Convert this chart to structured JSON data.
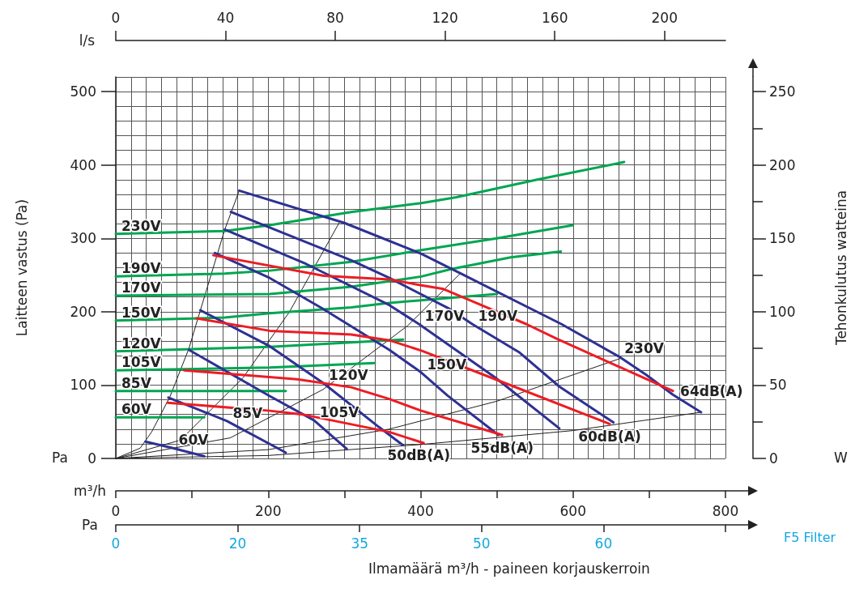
{
  "chart_data": {
    "type": "line",
    "xlabel": "m³/h",
    "x2label": "l/s",
    "ylabel": "Laitteen vastus (Pa)",
    "y2label": "Tehonkulutus watteina",
    "xlim": [
      0,
      800
    ],
    "xticks": [
      0,
      {
        "value": 100,
        "label": null
      },
      200,
      {
        "value": 300,
        "label": null
      },
      400,
      {
        "value": 500,
        "label": null
      },
      600,
      {
        "value": 700,
        "label": null
      },
      800
    ],
    "x2lim": [
      0,
      222.2
    ],
    "x2ticks": [
      0,
      40,
      80,
      120,
      160,
      200
    ],
    "ylim": [
      0,
      520
    ],
    "yticks": [
      0,
      100,
      200,
      300,
      400,
      500
    ],
    "y2lim": [
      0,
      260
    ],
    "y2ticks": [
      0,
      50,
      100,
      150,
      200,
      250
    ],
    "grid": true,
    "legend": false,
    "marker": "none",
    "line_style": "solid",
    "annotations": [
      "Pa",
      "W",
      "Pa",
      "0",
      "20",
      "35",
      "50",
      "60",
      "F5 Filter",
      "Ilmamäärä m³/h - paineen korjauskerroin"
    ],
    "series": [
      {
        "name": "230V",
        "color": "#00a651",
        "axis": "y2",
        "x": [
          0,
          143,
          202,
          309,
          401,
          447,
          553,
          667
        ],
        "values": [
          153,
          155,
          159,
          168,
          174,
          178,
          190,
          202
        ]
      },
      {
        "name": "190V",
        "color": "#00a651",
        "axis": "y2",
        "x": [
          0,
          143,
          202,
          309,
          401,
          500,
          600
        ],
        "values": [
          124,
          126,
          128,
          134,
          142,
          150,
          159
        ]
      },
      {
        "name": "170V",
        "color": "#00a651",
        "axis": "y2",
        "x": [
          0,
          202,
          309,
          401,
          440,
          518,
          584
        ],
        "values": [
          111,
          112,
          117,
          124,
          129,
          137,
          141
        ]
      },
      {
        "name": "150V",
        "color": "#00a651",
        "axis": "y2",
        "x": [
          0,
          143,
          202,
          309,
          359,
          500
        ],
        "values": [
          94,
          96,
          99,
          103,
          106,
          112
        ]
      },
      {
        "name": "120V",
        "color": "#00a651",
        "axis": "y2",
        "x": [
          0,
          202,
          377
        ],
        "values": [
          73,
          76,
          81
        ]
      },
      {
        "name": "105V",
        "color": "#00a651",
        "axis": "y2",
        "x": [
          0,
          202,
          339
        ],
        "values": [
          60,
          62,
          65
        ]
      },
      {
        "name": "85V",
        "color": "#00a651",
        "axis": "y2",
        "x": [
          0,
          223
        ],
        "values": [
          46,
          46
        ]
      },
      {
        "name": "60V",
        "color": "#00a651",
        "axis": "y2",
        "x": [
          0,
          116
        ],
        "values": [
          28,
          28
        ]
      },
      {
        "name": "60V",
        "color": "#2e3192",
        "x": [
          39,
          75,
          116
        ],
        "values": [
          23,
          14,
          3
        ]
      },
      {
        "name": "85V",
        "color": "#2e3192",
        "x": [
          69,
          146,
          223
        ],
        "values": [
          83,
          51,
          8
        ]
      },
      {
        "name": "105V",
        "color": "#2e3192",
        "x": [
          96,
          202,
          260,
          303
        ],
        "values": [
          148,
          85,
          52,
          13
        ]
      },
      {
        "name": "120V",
        "color": "#2e3192",
        "x": [
          111,
          202,
          272,
          345,
          377
        ],
        "values": [
          202,
          153,
          103,
          43,
          18
        ]
      },
      {
        "name": "150V",
        "color": "#2e3192",
        "x": [
          130,
          202,
          270,
          359,
          401,
          435,
          502
        ],
        "values": [
          280,
          246,
          205,
          148,
          117,
          86,
          32
        ]
      },
      {
        "name": "170V",
        "color": "#2e3192",
        "x": [
          143,
          250,
          359,
          398,
          497,
          582
        ],
        "values": [
          312,
          265,
          209,
          183,
          111,
          41
        ]
      },
      {
        "name": "190V",
        "color": "#2e3192",
        "x": [
          151,
          309,
          359,
          436,
          468,
          529,
          582,
          653
        ],
        "values": [
          336,
          270,
          246,
          205,
          183,
          145,
          98,
          49
        ]
      },
      {
        "name": "230V",
        "color": "#2e3192",
        "x": [
          162,
          300,
          401,
          451,
          585,
          660,
          696,
          731,
          768
        ],
        "values": [
          365,
          321,
          279,
          253,
          183,
          139,
          114,
          87,
          63
        ]
      },
      {
        "name": "50dB(A)",
        "color": "#ed1c24",
        "x": [
          68,
          202,
          245,
          359,
          404
        ],
        "values": [
          76,
          65,
          60,
          36,
          21
        ]
      },
      {
        "name": "55dB(A)",
        "color": "#ed1c24",
        "x": [
          90,
          238,
          309,
          359,
          401,
          507
        ],
        "values": [
          120,
          108,
          97,
          81,
          65,
          32
        ]
      },
      {
        "name": "60dB(A)",
        "color": "#ed1c24",
        "x": [
          106,
          202,
          309,
          359,
          401,
          483,
          648
        ],
        "values": [
          191,
          174,
          169,
          161,
          147,
          114,
          47
        ]
      },
      {
        "name": "64dB(A)",
        "color": "#ed1c24",
        "x": [
          128,
          273,
          359,
          401,
          430,
          489,
          539,
          579,
          731
        ],
        "values": [
          277,
          249,
          244,
          236,
          231,
          205,
          183,
          163,
          92
        ]
      },
      {
        "color": "#231f20",
        "x": [
          0,
          32,
          47,
          71,
          96,
          111,
          143,
          162
        ],
        "values": [
          0,
          14,
          36,
          84,
          150,
          202,
          312,
          365
        ]
      },
      {
        "color": "#231f20",
        "x": [
          0,
          85,
          167,
          228,
          293
        ],
        "values": [
          0,
          25,
          110,
          200,
          321
        ]
      },
      {
        "color": "#231f20",
        "x": [
          0,
          150,
          272,
          383,
          452
        ],
        "values": [
          0,
          28,
          94,
          181,
          252
        ]
      },
      {
        "color": "#231f20",
        "x": [
          0,
          200,
          359,
          500,
          664
        ],
        "values": [
          0,
          12,
          40,
          78,
          137
        ]
      },
      {
        "color": "#231f20",
        "x": [
          0,
          200,
          400,
          600,
          768
        ],
        "values": [
          0,
          4,
          19,
          38,
          63
        ]
      }
    ]
  }
}
